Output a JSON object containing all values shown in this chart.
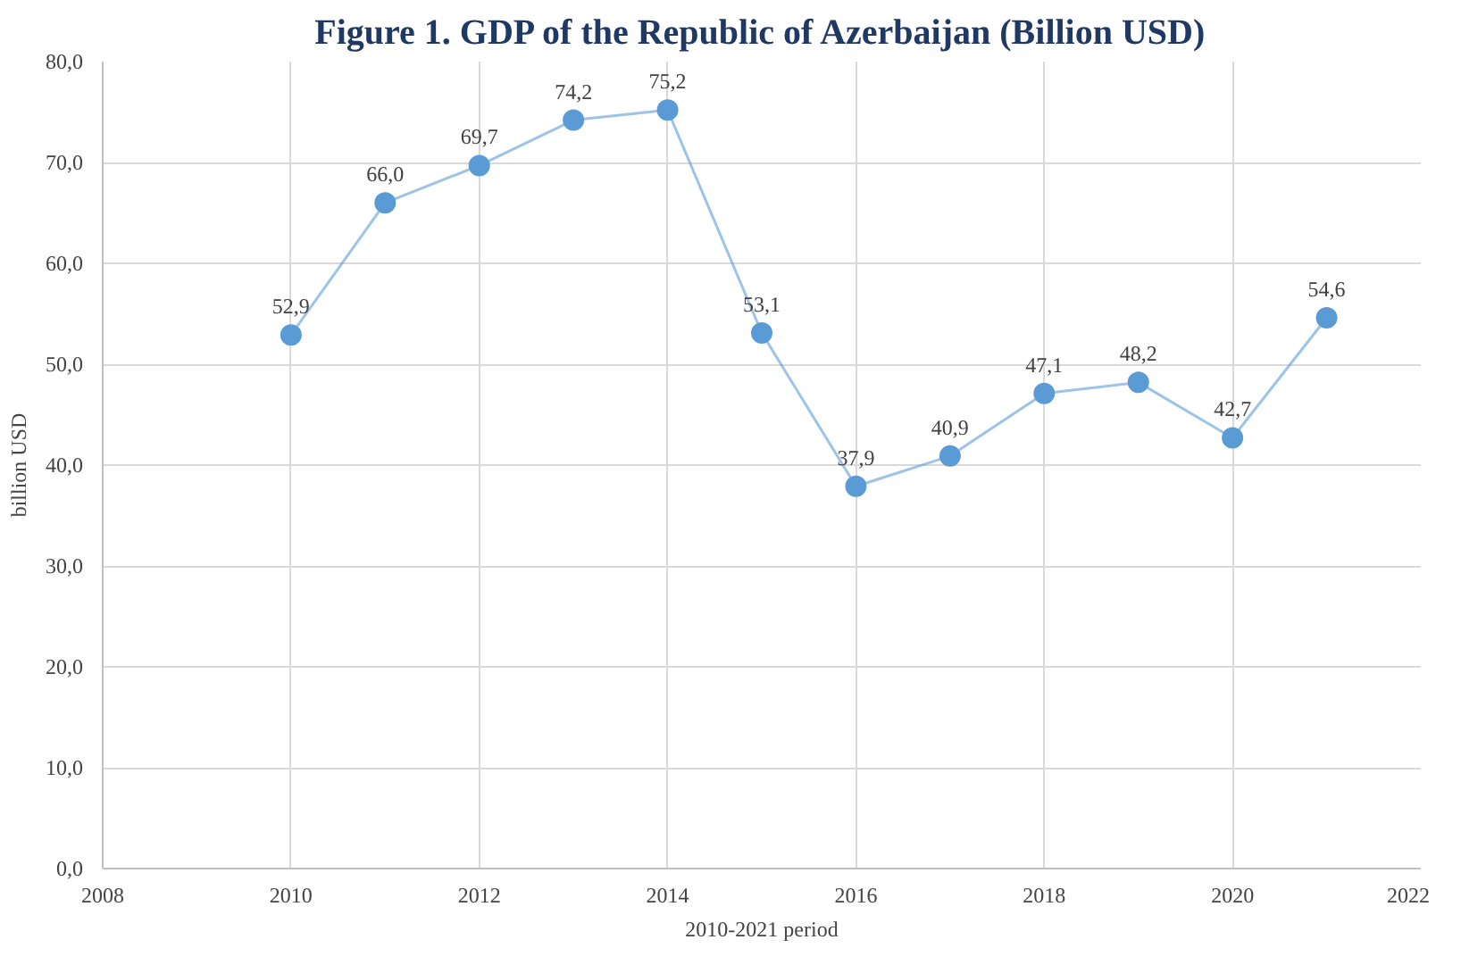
{
  "chart_data": {
    "type": "line",
    "title": "Figure 1. GDP of the Republic of Azerbaijan (Billion USD)",
    "xlabel": "2010-2021 period",
    "ylabel": "billion USD",
    "x": [
      2010,
      2011,
      2012,
      2013,
      2014,
      2015,
      2016,
      2017,
      2018,
      2019,
      2020,
      2021
    ],
    "series": [
      {
        "color": "#5b9bd5",
        "values": [
          52.9,
          66.0,
          69.7,
          74.2,
          75.2,
          53.1,
          37.9,
          40.9,
          47.1,
          48.2,
          42.7,
          54.6
        ],
        "value_labels": [
          "52,9",
          "66,0",
          "69,7",
          "74,2",
          "75,2",
          "53,1",
          "37,9",
          "40,9",
          "47,1",
          "48,2",
          "42,7",
          "54,6"
        ]
      }
    ],
    "xlim": [
      2008,
      2022
    ],
    "xticks": [
      2008,
      2010,
      2012,
      2014,
      2016,
      2018,
      2020,
      2022
    ],
    "ylim": [
      0,
      80
    ],
    "yticks": [
      {
        "value": 0,
        "label": "0,0"
      },
      {
        "value": 10,
        "label": "10,0"
      },
      {
        "value": 20,
        "label": "20,0"
      },
      {
        "value": 30,
        "label": "30,0"
      },
      {
        "value": 40,
        "label": "40,0"
      },
      {
        "value": 50,
        "label": "50,0"
      },
      {
        "value": 60,
        "label": "60,0"
      },
      {
        "value": 70,
        "label": "70,0"
      },
      {
        "value": 80,
        "label": "80,0"
      }
    ],
    "grid": true,
    "marker": "circle",
    "line_style": "solid"
  }
}
